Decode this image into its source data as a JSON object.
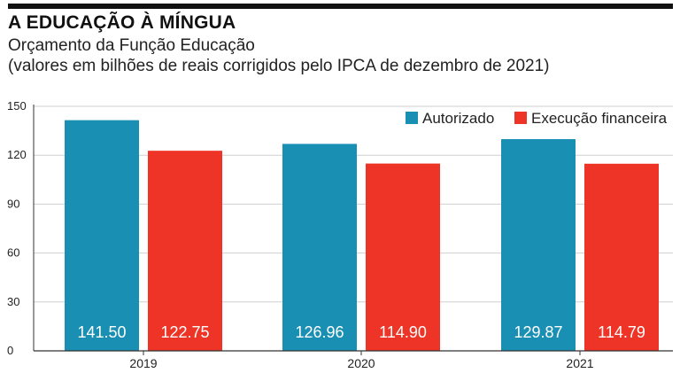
{
  "header": {
    "title": "A EDUCAÇÃO À MÍNGUA",
    "subtitle_line1": "Orçamento da Função Educação",
    "subtitle_line2": "(valores em bilhões de reais corrigidos pelo IPCA de dezembro de 2021)"
  },
  "colors": {
    "autorizado": "#1a8fb4",
    "execucao": "#ee3427",
    "grid": "#cfcfcf",
    "axis": "#333333"
  },
  "chart_data": {
    "type": "bar",
    "title": "A EDUCAÇÃO À MÍNGUA",
    "subtitle": "Orçamento da Função Educação (valores em bilhões de reais corrigidos pelo IPCA de dezembro de 2021)",
    "categories": [
      "2019",
      "2020",
      "2021"
    ],
    "series": [
      {
        "name": "Autorizado",
        "values": [
          141.5,
          126.96,
          129.87
        ],
        "labels": [
          "141.50",
          "126.96",
          "129.87"
        ]
      },
      {
        "name": "Execução financeira",
        "values": [
          122.75,
          114.9,
          114.79
        ],
        "labels": [
          "122.75",
          "114.90",
          "114.79"
        ]
      }
    ],
    "yticks": [
      0,
      30,
      60,
      90,
      120,
      150
    ],
    "ylim": [
      0,
      150
    ],
    "xlabel": "",
    "ylabel": "",
    "grid": true,
    "legend_position": "top-right"
  }
}
